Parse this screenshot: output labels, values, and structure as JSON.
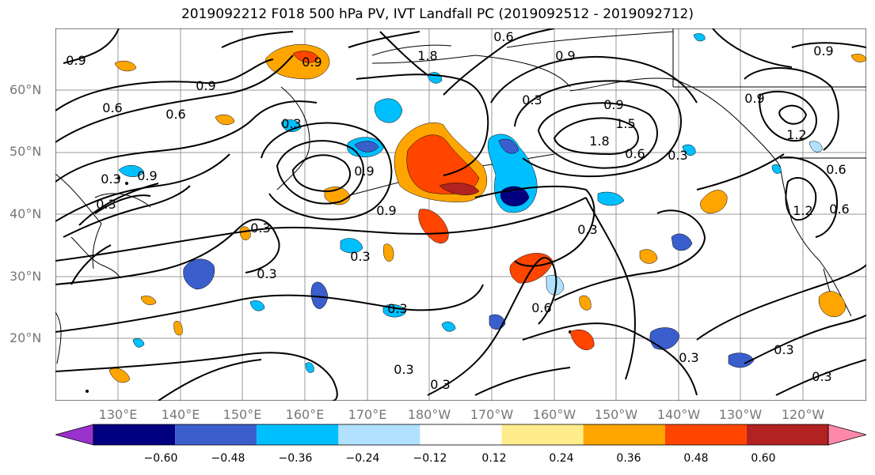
{
  "title": "2019092212 F018 500 hPa PV, IVT Landfall PC (2019092512 - 2019092712)",
  "lat_labels": [
    "60°N",
    "50°N",
    "40°N",
    "30°N",
    "20°N"
  ],
  "lon_labels": [
    "130°E",
    "140°E",
    "150°E",
    "160°E",
    "170°E",
    "180°W",
    "170°W",
    "160°W",
    "150°W",
    "140°W",
    "130°W",
    "120°W"
  ],
  "contour_labels": [
    "0.6",
    "0.9",
    "1.8",
    "0.9",
    "0.9",
    "0.9",
    "0.6",
    "0.9",
    "0.3",
    "0.6",
    "0.9",
    "0.3",
    "0.9",
    "0.9",
    "0.3",
    "1.5",
    "1.8",
    "0.9",
    "0.6",
    "0.3",
    "1.2",
    "0.9",
    "0.6",
    "1.2",
    "0.3",
    "0.3",
    "0.3",
    "0.3",
    "0.3",
    "0.6",
    "0.3",
    "0.3",
    "0.3",
    "0.3",
    "0.3",
    "0.3",
    "0.6"
  ],
  "colorbar": {
    "ticks": [
      "−0.60",
      "−0.48",
      "−0.36",
      "−0.24",
      "−0.12",
      "0.12",
      "0.24",
      "0.36",
      "0.48",
      "0.60"
    ],
    "colors": [
      "#9932CC",
      "#000080",
      "#3A5FCD",
      "#00BFFF",
      "#B0E2FF",
      "#FFFFFF",
      "#FFEC8B",
      "#FFA500",
      "#FF4500",
      "#B22222",
      "#FF88AA"
    ]
  }
}
